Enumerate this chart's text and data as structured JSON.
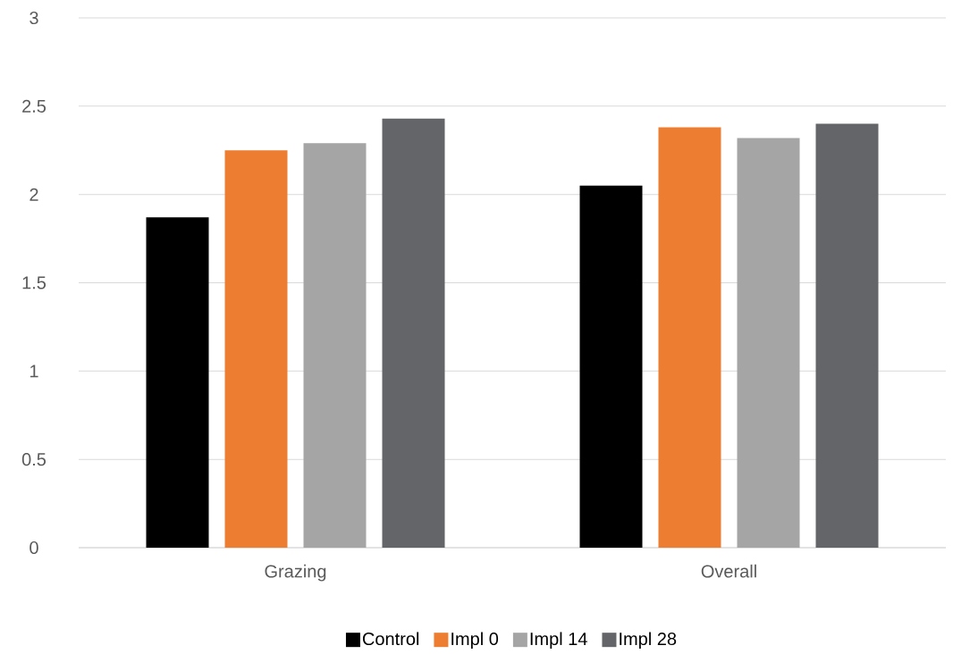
{
  "chart_data": {
    "type": "bar",
    "categories": [
      "Grazing",
      "Overall"
    ],
    "series": [
      {
        "name": "Control",
        "color": "#000000",
        "values": [
          1.87,
          2.05
        ]
      },
      {
        "name": "Impl 0",
        "color": "#ed7d31",
        "values": [
          2.25,
          2.38
        ]
      },
      {
        "name": "Impl 14",
        "color": "#a5a5a5",
        "values": [
          2.29,
          2.32
        ]
      },
      {
        "name": "Impl 28",
        "color": "#636569",
        "values": [
          2.43,
          2.4
        ]
      }
    ],
    "ylim": [
      0,
      3
    ],
    "yticks": [
      0,
      0.5,
      1,
      1.5,
      2,
      2.5,
      3
    ],
    "grid": "y",
    "legend": "bottom"
  }
}
